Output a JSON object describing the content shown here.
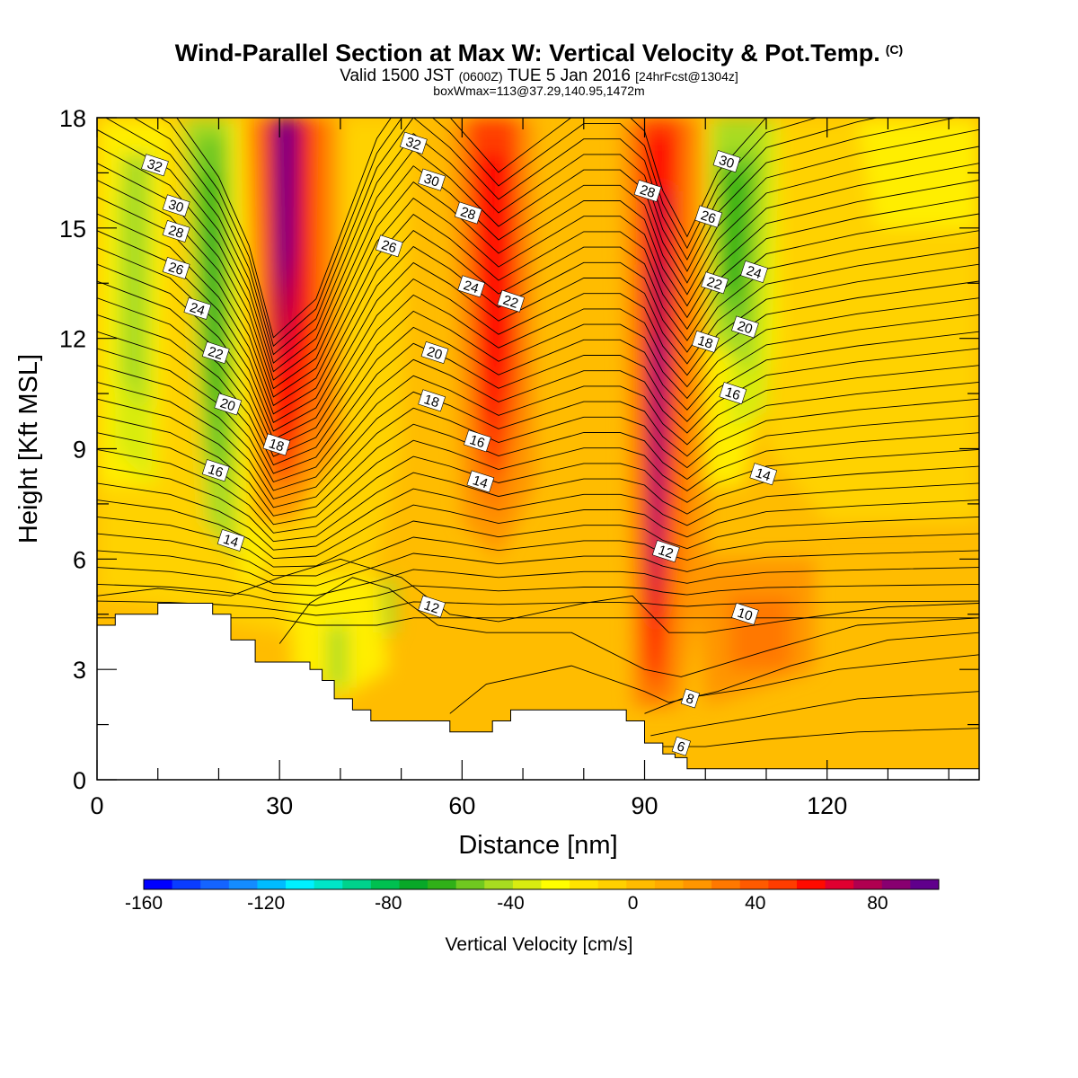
{
  "header": {
    "title": "Wind-Parallel Section at Max W: Vertical Velocity & Pot.Temp.",
    "copyright": "(C)",
    "valid_prefix": "Valid 1500 JST",
    "valid_z": "(0600Z)",
    "valid_date": "TUE 5 Jan 2016",
    "forecast": "[24hrFcst@1304z]",
    "boxwmax": "boxWmax=113@37.29,140.95,1472m"
  },
  "chart_data": {
    "type": "heatmap",
    "xlabel": "Distance [nm]",
    "ylabel": "Height [Kft MSL]",
    "xlim": [
      0,
      145
    ],
    "ylim": [
      0,
      18
    ],
    "xticks": [
      0,
      30,
      60,
      90,
      120
    ],
    "yticks": [
      0,
      3,
      6,
      9,
      12,
      15,
      18
    ],
    "colorbar": {
      "label": "Vertical Velocity [cm/s]",
      "range": [
        -160,
        100
      ],
      "ticks": [
        -160,
        -120,
        -80,
        -40,
        0,
        40,
        80
      ],
      "colors": [
        "#0000ff",
        "#0a3cff",
        "#1464ff",
        "#148cff",
        "#00bcff",
        "#00f0ff",
        "#00e6c8",
        "#00d28c",
        "#00c050",
        "#08a828",
        "#30b018",
        "#70c820",
        "#a8dc20",
        "#d8ec10",
        "#ffff00",
        "#ffe400",
        "#ffd000",
        "#ffbc00",
        "#ffaa00",
        "#ff9600",
        "#ff7800",
        "#ff5a00",
        "#ff3c00",
        "#ff0a00",
        "#e00030",
        "#b00050",
        "#880070",
        "#60008c"
      ]
    },
    "terrain": [
      [
        0,
        4.2
      ],
      [
        3,
        4.2
      ],
      [
        3,
        4.5
      ],
      [
        10,
        4.5
      ],
      [
        10,
        4.8
      ],
      [
        19,
        4.8
      ],
      [
        19,
        4.5
      ],
      [
        22,
        4.5
      ],
      [
        22,
        3.8
      ],
      [
        26,
        3.8
      ],
      [
        26,
        3.2
      ],
      [
        35,
        3.2
      ],
      [
        35,
        3.0
      ],
      [
        37,
        3.0
      ],
      [
        37,
        2.7
      ],
      [
        39,
        2.7
      ],
      [
        39,
        2.2
      ],
      [
        42,
        2.2
      ],
      [
        42,
        1.9
      ],
      [
        45,
        1.9
      ],
      [
        45,
        1.6
      ],
      [
        58,
        1.6
      ],
      [
        58,
        1.3
      ],
      [
        65,
        1.3
      ],
      [
        65,
        1.6
      ],
      [
        68,
        1.6
      ],
      [
        68,
        1.9
      ],
      [
        87,
        1.9
      ],
      [
        87,
        1.6
      ],
      [
        90,
        1.6
      ],
      [
        90,
        1.0
      ],
      [
        93,
        1.0
      ],
      [
        93,
        0.7
      ],
      [
        95,
        0.7
      ],
      [
        95,
        0.6
      ],
      [
        97,
        0.6
      ],
      [
        97,
        0.3
      ],
      [
        145,
        0.3
      ]
    ],
    "vertical_velocity_features": [
      {
        "kind": "updraft",
        "x": 30,
        "y": 14,
        "w_cm_s": 100
      },
      {
        "kind": "updraft",
        "x": 65,
        "y": 12,
        "w_cm_s": 60
      },
      {
        "kind": "updraft",
        "x": 92,
        "y": 6,
        "w_cm_s": 100
      },
      {
        "kind": "downdraft",
        "x": 20,
        "y": 12,
        "w_cm_s": -80
      },
      {
        "kind": "downdraft",
        "x": 105,
        "y": 15,
        "w_cm_s": -80
      },
      {
        "kind": "weak_downdraft",
        "x": 40,
        "y": 3.5,
        "w_cm_s": -40
      }
    ],
    "contour_labels": [
      {
        "text": "32",
        "x": 9.5,
        "y": 16.7
      },
      {
        "text": "30",
        "x": 13,
        "y": 15.6
      },
      {
        "text": "28",
        "x": 13,
        "y": 14.9
      },
      {
        "text": "26",
        "x": 13,
        "y": 13.9
      },
      {
        "text": "24",
        "x": 16.5,
        "y": 12.8
      },
      {
        "text": "22",
        "x": 19.5,
        "y": 11.6
      },
      {
        "text": "20",
        "x": 21.5,
        "y": 10.2
      },
      {
        "text": "16",
        "x": 19.5,
        "y": 8.4
      },
      {
        "text": "14",
        "x": 22,
        "y": 6.5
      },
      {
        "text": "18",
        "x": 29.5,
        "y": 9.1
      },
      {
        "text": "32",
        "x": 52,
        "y": 17.3
      },
      {
        "text": "30",
        "x": 55,
        "y": 16.3
      },
      {
        "text": "28",
        "x": 61,
        "y": 15.4
      },
      {
        "text": "26",
        "x": 48,
        "y": 14.5
      },
      {
        "text": "24",
        "x": 61.5,
        "y": 13.4
      },
      {
        "text": "22",
        "x": 68,
        "y": 13.0
      },
      {
        "text": "20",
        "x": 55.5,
        "y": 11.6
      },
      {
        "text": "18",
        "x": 55,
        "y": 10.3
      },
      {
        "text": "16",
        "x": 62.5,
        "y": 9.2
      },
      {
        "text": "14",
        "x": 63,
        "y": 8.1
      },
      {
        "text": "12",
        "x": 55,
        "y": 4.7
      },
      {
        "text": "28",
        "x": 90.5,
        "y": 16.0
      },
      {
        "text": "26",
        "x": 100.5,
        "y": 15.3
      },
      {
        "text": "22",
        "x": 101.5,
        "y": 13.5
      },
      {
        "text": "18",
        "x": 100,
        "y": 11.9
      },
      {
        "text": "16",
        "x": 104.5,
        "y": 10.5
      },
      {
        "text": "30",
        "x": 103.5,
        "y": 16.8
      },
      {
        "text": "24",
        "x": 108,
        "y": 13.8
      },
      {
        "text": "20",
        "x": 106.5,
        "y": 12.3
      },
      {
        "text": "14",
        "x": 109.5,
        "y": 8.3
      },
      {
        "text": "12",
        "x": 93.5,
        "y": 6.2
      },
      {
        "text": "10",
        "x": 106.5,
        "y": 4.5
      },
      {
        "text": "8",
        "x": 97.5,
        "y": 2.2
      },
      {
        "text": "6",
        "x": 96,
        "y": 0.9
      }
    ]
  }
}
